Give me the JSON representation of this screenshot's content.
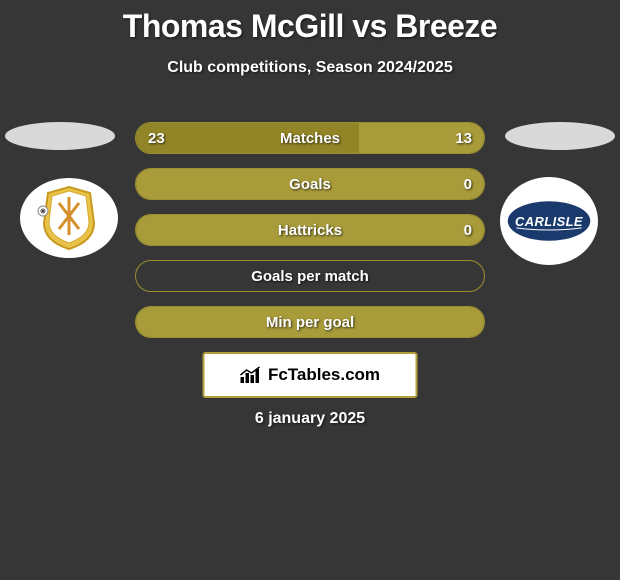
{
  "title": "Thomas McGill vs Breeze",
  "subtitle": "Club competitions, Season 2024/2025",
  "date": "6 january 2025",
  "brand": "FcTables.com",
  "colors": {
    "bar_fill": "#a89b3a",
    "bar_border": "#9c8f30",
    "bar_empty": "#363636",
    "highlight_fill": "#928527"
  },
  "stats": [
    {
      "label": "Matches",
      "left_val": "23",
      "right_val": "13",
      "left_pct": 64,
      "right_pct": 36,
      "show_vals": true
    },
    {
      "label": "Goals",
      "left_val": "",
      "right_val": "0",
      "left_pct": 100,
      "right_pct": 0,
      "show_vals": true
    },
    {
      "label": "Hattricks",
      "left_val": "",
      "right_val": "0",
      "left_pct": 100,
      "right_pct": 0,
      "show_vals": true
    },
    {
      "label": "Goals per match",
      "left_val": "",
      "right_val": "",
      "left_pct": 0,
      "right_pct": 0,
      "show_vals": false
    },
    {
      "label": "Min per goal",
      "left_val": "",
      "right_val": "",
      "left_pct": 100,
      "right_pct": 0,
      "show_vals": false
    }
  ],
  "left_team": {
    "name": "mk-dons"
  },
  "right_team": {
    "name": "carlisle"
  }
}
